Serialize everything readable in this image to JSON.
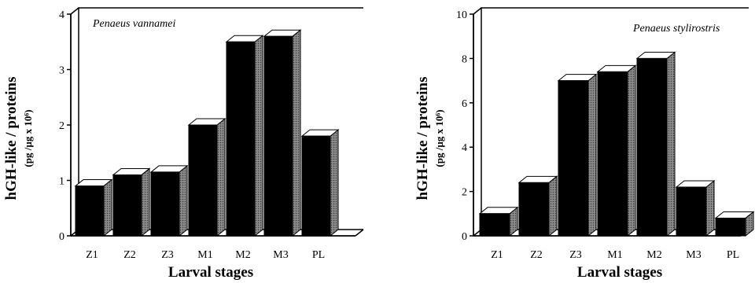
{
  "chart_data": [
    {
      "type": "bar",
      "title": "Penaeus vannamei",
      "xlabel": "Larval stages",
      "ylabel": "hGH-like / proteins",
      "yunit": "(pg /µg x 10⁶)",
      "categories": [
        "Z1",
        "Z2",
        "Z3",
        "M1",
        "M2",
        "M3",
        "PL"
      ],
      "values": [
        0.9,
        1.1,
        1.15,
        2.0,
        3.5,
        3.6,
        1.8
      ],
      "ylim": [
        0,
        4
      ],
      "yticks": [
        "0",
        "1",
        "2",
        "3",
        "4"
      ],
      "grid": false,
      "bar_color": "#000000",
      "side_color": "#7a7a7a",
      "top_color": "#ffffff"
    },
    {
      "type": "bar",
      "title": "Penaeus stylirostris",
      "xlabel": "Larval stages",
      "ylabel": "hGH-like / proteins",
      "yunit": "(pg /µg x 10⁶)",
      "categories": [
        "Z1",
        "Z2",
        "Z3",
        "M1",
        "M2",
        "M3",
        "PL"
      ],
      "values": [
        1.0,
        2.4,
        7.0,
        7.4,
        8.0,
        2.2,
        0.8
      ],
      "ylim": [
        0,
        10
      ],
      "yticks": [
        "0",
        "2",
        "4",
        "6",
        "8",
        "10"
      ],
      "grid": false,
      "bar_color": "#000000",
      "side_color": "#7a7a7a",
      "top_color": "#ffffff"
    }
  ]
}
